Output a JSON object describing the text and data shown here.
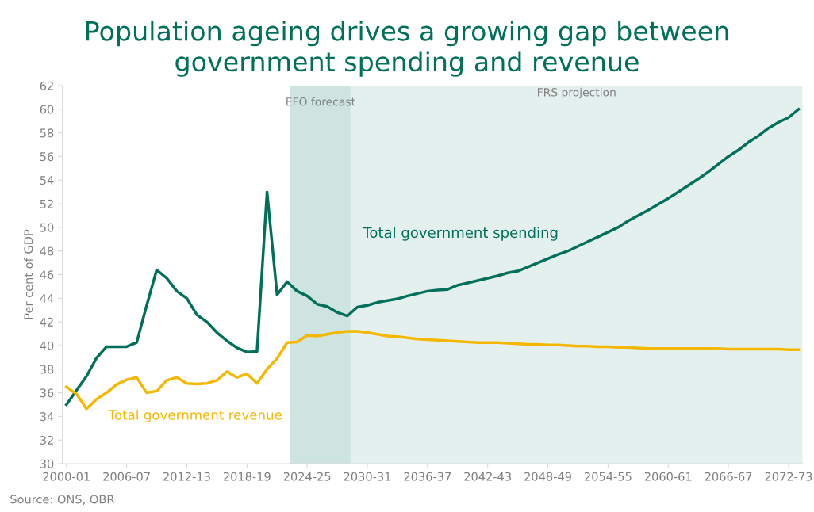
{
  "chart_data": {
    "type": "line",
    "title": "Population ageing drives a growing gap between\ngovernment spending and revenue",
    "ylabel": "Per cent of GDP",
    "categories": [
      "2000-01",
      null,
      null,
      null,
      null,
      null,
      "2006-07",
      null,
      null,
      null,
      null,
      null,
      "2012-13",
      null,
      null,
      null,
      null,
      null,
      "2018-19",
      null,
      null,
      null,
      null,
      null,
      "2024-25",
      null,
      null,
      null,
      null,
      null,
      "2030-31",
      null,
      null,
      null,
      null,
      null,
      "2036-37",
      null,
      null,
      null,
      null,
      null,
      "2042-43",
      null,
      null,
      null,
      null,
      null,
      "2048-49",
      null,
      null,
      null,
      null,
      null,
      "2054-55",
      null,
      null,
      null,
      null,
      null,
      "2060-61",
      null,
      null,
      null,
      null,
      null,
      "2066-67",
      null,
      null,
      null,
      null,
      null,
      "2072-73",
      null
    ],
    "series": [
      {
        "name": "Total government spending",
        "color": "#00705a",
        "values": [
          35.0,
          36.2,
          37.4,
          38.95,
          39.9,
          39.9,
          39.9,
          40.25,
          43.4,
          46.4,
          45.7,
          44.6,
          44.0,
          42.6,
          42.0,
          41.1,
          40.4,
          39.8,
          39.45,
          39.5,
          53.0,
          44.3,
          45.4,
          44.6,
          44.2,
          43.5,
          43.3,
          42.8,
          42.5,
          43.25,
          43.4,
          43.65,
          43.8,
          43.95,
          44.2,
          44.4,
          44.6,
          44.7,
          44.75,
          45.1,
          45.3,
          45.5,
          45.7,
          45.9,
          46.15,
          46.3,
          46.65,
          47.0,
          47.35,
          47.7,
          48.0,
          48.4,
          48.8,
          49.2,
          49.6,
          50.0,
          50.55,
          51.0,
          51.45,
          51.95,
          52.45,
          53.0,
          53.55,
          54.1,
          54.7,
          55.35,
          56.0,
          56.55,
          57.2,
          57.75,
          58.4,
          58.9,
          59.3,
          60.0
        ]
      },
      {
        "name": "Total government revenue",
        "color": "#f5b800",
        "values": [
          36.5,
          35.9,
          34.65,
          35.45,
          36.0,
          36.7,
          37.1,
          37.3,
          36.0,
          36.15,
          37.05,
          37.3,
          36.8,
          36.75,
          36.8,
          37.05,
          37.8,
          37.3,
          37.6,
          36.8,
          38.0,
          38.9,
          40.25,
          40.3,
          40.85,
          40.8,
          40.95,
          41.1,
          41.2,
          41.2,
          41.1,
          40.95,
          40.8,
          40.75,
          40.65,
          40.55,
          40.5,
          40.45,
          40.4,
          40.35,
          40.3,
          40.25,
          40.25,
          40.25,
          40.2,
          40.15,
          40.1,
          40.1,
          40.05,
          40.05,
          40.0,
          39.95,
          39.95,
          39.9,
          39.9,
          39.85,
          39.85,
          39.8,
          39.75,
          39.75,
          39.75,
          39.75,
          39.75,
          39.75,
          39.75,
          39.75,
          39.7,
          39.7,
          39.7,
          39.7,
          39.7,
          39.7,
          39.65,
          39.65
        ]
      }
    ],
    "ylim": [
      30,
      62
    ],
    "yticks": [
      30,
      32,
      34,
      36,
      38,
      40,
      42,
      44,
      46,
      48,
      50,
      52,
      54,
      56,
      58,
      60,
      62
    ],
    "annotations": [
      "Source: ONS, OBR",
      "EFO forecast",
      "FRS projection"
    ],
    "grid": false,
    "legend": false,
    "marker": "none",
    "line_style": "solid"
  }
}
